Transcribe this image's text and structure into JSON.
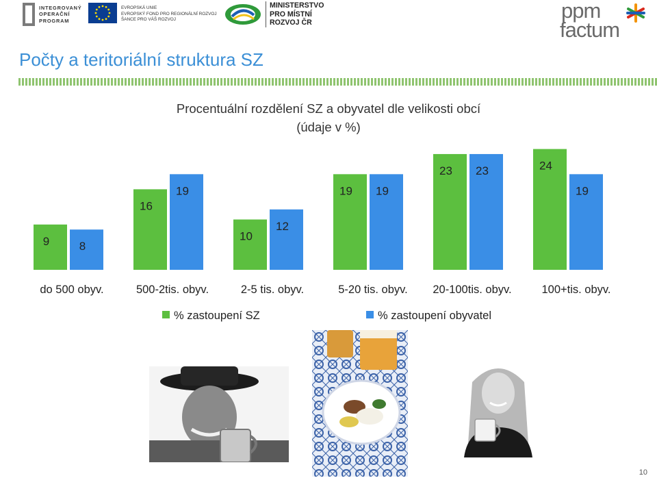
{
  "header": {
    "program_logo": [
      "INTEGROVANÝ",
      "OPERAČNÍ",
      "PROGRAM"
    ],
    "eu_text": [
      "EVROPSKÁ UNIE",
      "EVROPSKÝ FOND PRO REGIONÁLNÍ ROZVOJ",
      "ŠANCE PRO VÁŠ ROZVOJ"
    ],
    "ministry": [
      "MINISTERSTVO",
      "PRO MÍSTNÍ",
      "ROZVOJ ČR"
    ],
    "brand_line1": "ppm",
    "brand_line2": "factum"
  },
  "slide": {
    "title": "Počty a teritoriální struktura SZ",
    "page_number": "10"
  },
  "colors": {
    "title": "#3b8fd6",
    "series_sz": "#5cbf3f",
    "series_obyvatel": "#3a8ee6",
    "rule": "#8fc46f"
  },
  "chart_data": {
    "type": "bar",
    "title_line1": "Procentuální rozdělení SZ a obyvatel dle velikosti obcí",
    "title_line2": "(údaje v %)",
    "categories": [
      "do 500 obyv.",
      "500-2tis. obyv.",
      "2-5 tis. obyv.",
      "5-20 tis. obyv.",
      "20-100tis. obyv.",
      "100+tis. obyv."
    ],
    "series": [
      {
        "name": "% zastoupení SZ",
        "values": [
          9,
          16,
          10,
          19,
          23,
          24
        ]
      },
      {
        "name": "% zastoupení obyvatel",
        "values": [
          8,
          19,
          12,
          19,
          23,
          19
        ]
      }
    ],
    "xlabel": "",
    "ylabel": "",
    "ylim": [
      0,
      24
    ],
    "grid": false,
    "legend": "bottom"
  },
  "images": [
    {
      "name": "man-with-beer-photo"
    },
    {
      "name": "plate-and-beer-photo"
    },
    {
      "name": "woman-with-cup-photo"
    }
  ]
}
